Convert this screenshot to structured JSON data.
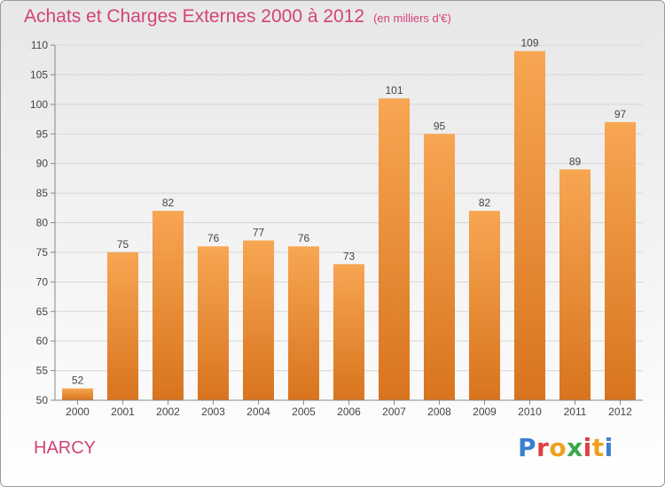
{
  "chart_title": "Achats et Charges Externes 2000 à 2012",
  "chart_subtitle": "(en milliers d'€)",
  "city": "HARCY",
  "logo": {
    "text": "Proxiti",
    "colors": [
      "#3a7fd0",
      "#e04040",
      "#f0a020",
      "#3aa94a",
      "#e04040",
      "#f0a020",
      "#3a7fd0"
    ]
  },
  "colors": {
    "title": "#d4427a",
    "bar_top": "#f7a652",
    "bar_bottom": "#d9741e",
    "grid": "#d6d6d6",
    "axis": "#888888"
  },
  "chart_data": {
    "type": "bar",
    "categories": [
      "2000",
      "2001",
      "2002",
      "2003",
      "2004",
      "2005",
      "2006",
      "2007",
      "2008",
      "2009",
      "2010",
      "2011",
      "2012"
    ],
    "values": [
      52,
      75,
      82,
      76,
      77,
      76,
      73,
      101,
      95,
      82,
      109,
      89,
      97
    ],
    "ylim": [
      50,
      110
    ],
    "yticks": [
      50,
      55,
      60,
      65,
      70,
      75,
      80,
      85,
      90,
      95,
      100,
      105,
      110
    ],
    "grid": true,
    "show_value_labels": true
  }
}
